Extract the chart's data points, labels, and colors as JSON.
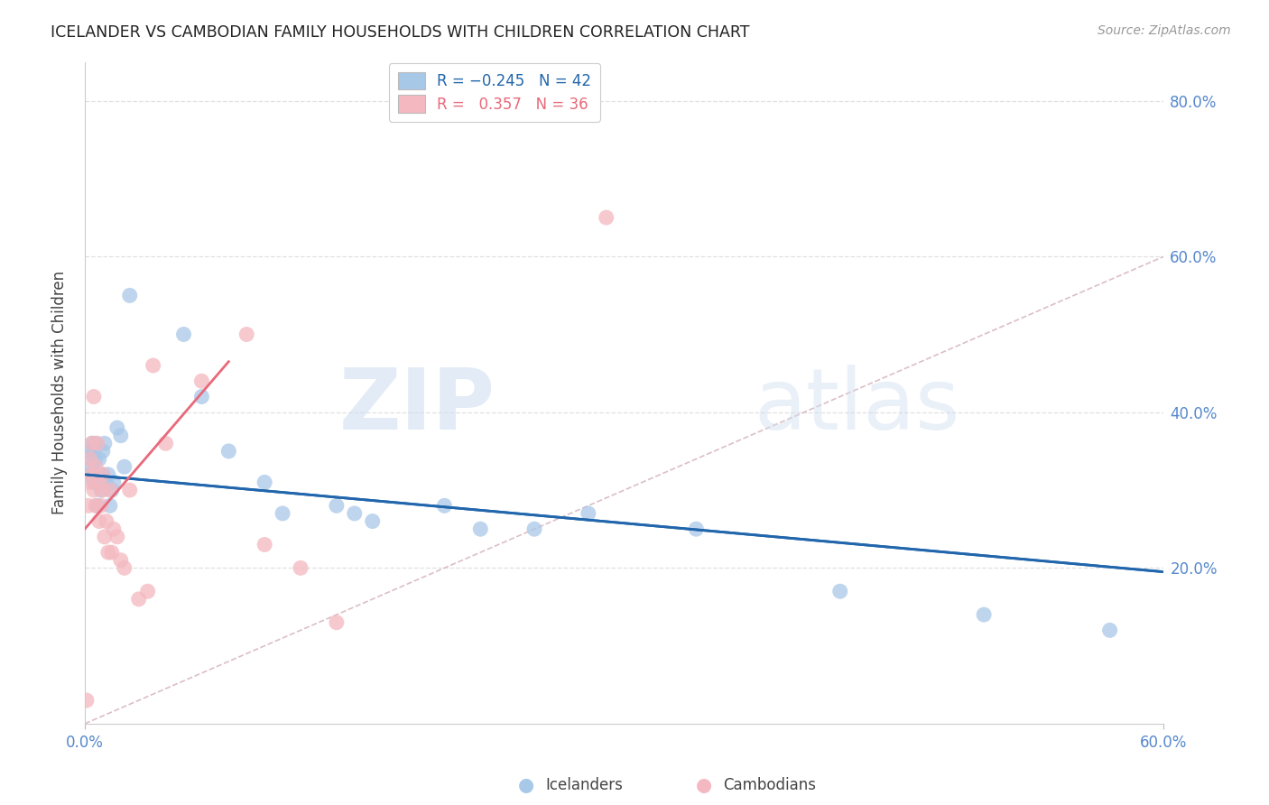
{
  "title": "ICELANDER VS CAMBODIAN FAMILY HOUSEHOLDS WITH CHILDREN CORRELATION CHART",
  "source": "Source: ZipAtlas.com",
  "ylabel": "Family Households with Children",
  "xlabel_icelanders": "Icelanders",
  "xlabel_cambodians": "Cambodians",
  "xlim": [
    0.0,
    0.6
  ],
  "ylim": [
    0.0,
    0.85
  ],
  "ytick_values": [
    0.2,
    0.4,
    0.6,
    0.8
  ],
  "xtick_values": [
    0.0,
    0.6
  ],
  "color_icelanders": "#a8c8e8",
  "color_cambodians": "#f4b8c0",
  "color_trendline_icelanders": "#2166ac",
  "color_trendline_cambodians": "#e8697a",
  "color_diagonal": "#d8b8c0",
  "color_grid": "#e0e0e0",
  "color_axis_right": "#5588cc",
  "watermark_zip": "ZIP",
  "watermark_atlas": "atlas",
  "icelanders_x": [
    0.002,
    0.003,
    0.003,
    0.004,
    0.004,
    0.005,
    0.005,
    0.006,
    0.006,
    0.007,
    0.007,
    0.008,
    0.008,
    0.009,
    0.01,
    0.01,
    0.011,
    0.012,
    0.013,
    0.014,
    0.015,
    0.016,
    0.018,
    0.02,
    0.022,
    0.025,
    0.055,
    0.065,
    0.08,
    0.1,
    0.11,
    0.14,
    0.15,
    0.16,
    0.2,
    0.22,
    0.25,
    0.28,
    0.34,
    0.42,
    0.5,
    0.57
  ],
  "icelanders_y": [
    0.35,
    0.34,
    0.32,
    0.36,
    0.33,
    0.35,
    0.31,
    0.34,
    0.36,
    0.32,
    0.28,
    0.34,
    0.31,
    0.3,
    0.35,
    0.32,
    0.36,
    0.31,
    0.32,
    0.28,
    0.3,
    0.31,
    0.38,
    0.37,
    0.33,
    0.55,
    0.5,
    0.42,
    0.35,
    0.31,
    0.27,
    0.28,
    0.27,
    0.26,
    0.28,
    0.25,
    0.25,
    0.27,
    0.25,
    0.17,
    0.14,
    0.12
  ],
  "cambodians_x": [
    0.001,
    0.002,
    0.003,
    0.003,
    0.004,
    0.004,
    0.005,
    0.005,
    0.006,
    0.006,
    0.007,
    0.008,
    0.008,
    0.009,
    0.01,
    0.01,
    0.011,
    0.012,
    0.013,
    0.014,
    0.015,
    0.016,
    0.018,
    0.02,
    0.022,
    0.025,
    0.03,
    0.035,
    0.038,
    0.045,
    0.065,
    0.09,
    0.1,
    0.12,
    0.14,
    0.29
  ],
  "cambodians_y": [
    0.03,
    0.28,
    0.34,
    0.31,
    0.32,
    0.36,
    0.3,
    0.42,
    0.28,
    0.33,
    0.36,
    0.31,
    0.26,
    0.28,
    0.32,
    0.3,
    0.24,
    0.26,
    0.22,
    0.3,
    0.22,
    0.25,
    0.24,
    0.21,
    0.2,
    0.3,
    0.16,
    0.17,
    0.46,
    0.36,
    0.44,
    0.5,
    0.23,
    0.2,
    0.13,
    0.65
  ],
  "trendline_i_x0": 0.0,
  "trendline_i_x1": 0.6,
  "trendline_i_y0": 0.32,
  "trendline_i_y1": 0.195,
  "trendline_c_x0": 0.0,
  "trendline_c_x1": 0.08,
  "trendline_c_y0": 0.25,
  "trendline_c_y1": 0.465
}
